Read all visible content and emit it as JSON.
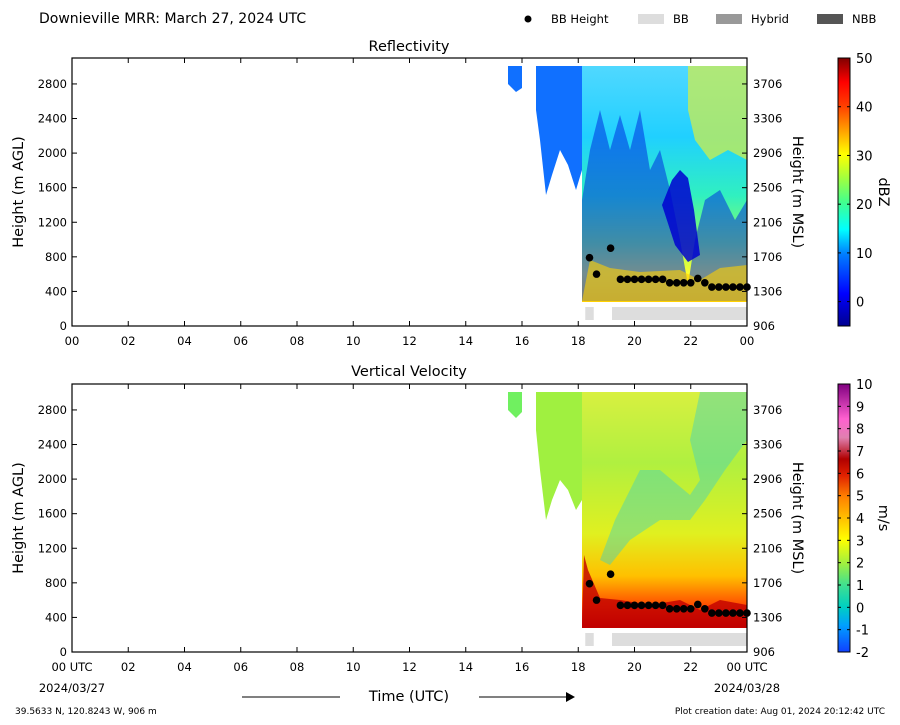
{
  "header": {
    "title": "Downieville MRR:  March 27, 2024 UTC",
    "legend": [
      {
        "label": "BB Height",
        "marker": "dot",
        "color": "#000000"
      },
      {
        "label": "BB",
        "marker": "patch",
        "color": "#dddddd"
      },
      {
        "label": "Hybrid",
        "marker": "patch",
        "color": "#999999"
      },
      {
        "label": "NBB",
        "marker": "patch",
        "color": "#555555"
      }
    ]
  },
  "footer": {
    "coords": "39.5633 N, 120.8243 W, 906 m",
    "created": "Plot creation date: Aug 01, 2024 20:12:42 UTC",
    "xlabel": "Time (UTC)",
    "date_start": "2024/03/27",
    "date_end": "2024/03/28"
  },
  "chart_data": [
    {
      "type": "heatmap",
      "title": "Reflectivity",
      "xlabel": "Time (UTC)",
      "ylabel": "Height (m AGL)",
      "ylabel_right": "Height (m MSL)",
      "xlim": [
        0,
        24
      ],
      "ylim": [
        0,
        3100
      ],
      "x_ticks": [
        "00",
        "02",
        "04",
        "06",
        "08",
        "10",
        "12",
        "14",
        "16",
        "18",
        "20",
        "22",
        "00"
      ],
      "y_ticks": [
        0,
        400,
        800,
        1200,
        1600,
        2000,
        2400,
        2800
      ],
      "y_ticks_right": [
        906,
        1306,
        1706,
        2106,
        2506,
        2906,
        3306,
        3706
      ],
      "colorbar": {
        "label": "dBZ",
        "range": [
          -5,
          50
        ],
        "ticks": [
          0,
          10,
          20,
          30,
          40,
          50
        ]
      },
      "bb_height": {
        "x": [
          18.4,
          18.65,
          19.15,
          19.5,
          19.75,
          20.0,
          20.25,
          20.5,
          20.75,
          21.0,
          21.25,
          21.5,
          21.75,
          22.0,
          22.25,
          22.5,
          22.75,
          23.0,
          23.25,
          23.5,
          23.75,
          24.0
        ],
        "y": [
          790,
          600,
          900,
          540,
          540,
          540,
          540,
          540,
          540,
          540,
          500,
          500,
          500,
          500,
          550,
          500,
          450,
          450,
          450,
          450,
          450,
          450
        ]
      },
      "bb_type": [
        {
          "start": 18.25,
          "end": 18.55,
          "type": "BB"
        },
        {
          "start": 19.2,
          "end": 24.0,
          "type": "BB"
        }
      ]
    },
    {
      "type": "heatmap",
      "title": "Vertical Velocity",
      "xlabel": "Time (UTC)",
      "ylabel": "Height (m AGL)",
      "ylabel_right": "Height (m MSL)",
      "xlim": [
        0,
        24
      ],
      "ylim": [
        0,
        3100
      ],
      "x_ticks": [
        "00 UTC",
        "02",
        "04",
        "06",
        "08",
        "10",
        "12",
        "14",
        "16",
        "18",
        "20",
        "22",
        "00 UTC"
      ],
      "y_ticks": [
        0,
        400,
        800,
        1200,
        1600,
        2000,
        2400,
        2800
      ],
      "y_ticks_right": [
        906,
        1306,
        1706,
        2106,
        2506,
        2906,
        3306,
        3706
      ],
      "colorbar": {
        "label": "m/s",
        "range": [
          -2,
          10
        ],
        "ticks": [
          -2,
          -1,
          0,
          1,
          2,
          3,
          4,
          5,
          6,
          7,
          8,
          9,
          10
        ]
      },
      "bb_height": {
        "x": [
          18.4,
          18.65,
          19.15,
          19.5,
          19.75,
          20.0,
          20.25,
          20.5,
          20.75,
          21.0,
          21.25,
          21.5,
          21.75,
          22.0,
          22.25,
          22.5,
          22.75,
          23.0,
          23.25,
          23.5,
          23.75,
          24.0
        ],
        "y": [
          790,
          600,
          900,
          540,
          540,
          540,
          540,
          540,
          540,
          540,
          500,
          500,
          500,
          500,
          550,
          500,
          450,
          450,
          450,
          450,
          450,
          450
        ]
      },
      "bb_type": [
        {
          "start": 18.25,
          "end": 18.55,
          "type": "BB"
        },
        {
          "start": 19.2,
          "end": 24.0,
          "type": "BB"
        }
      ]
    }
  ]
}
